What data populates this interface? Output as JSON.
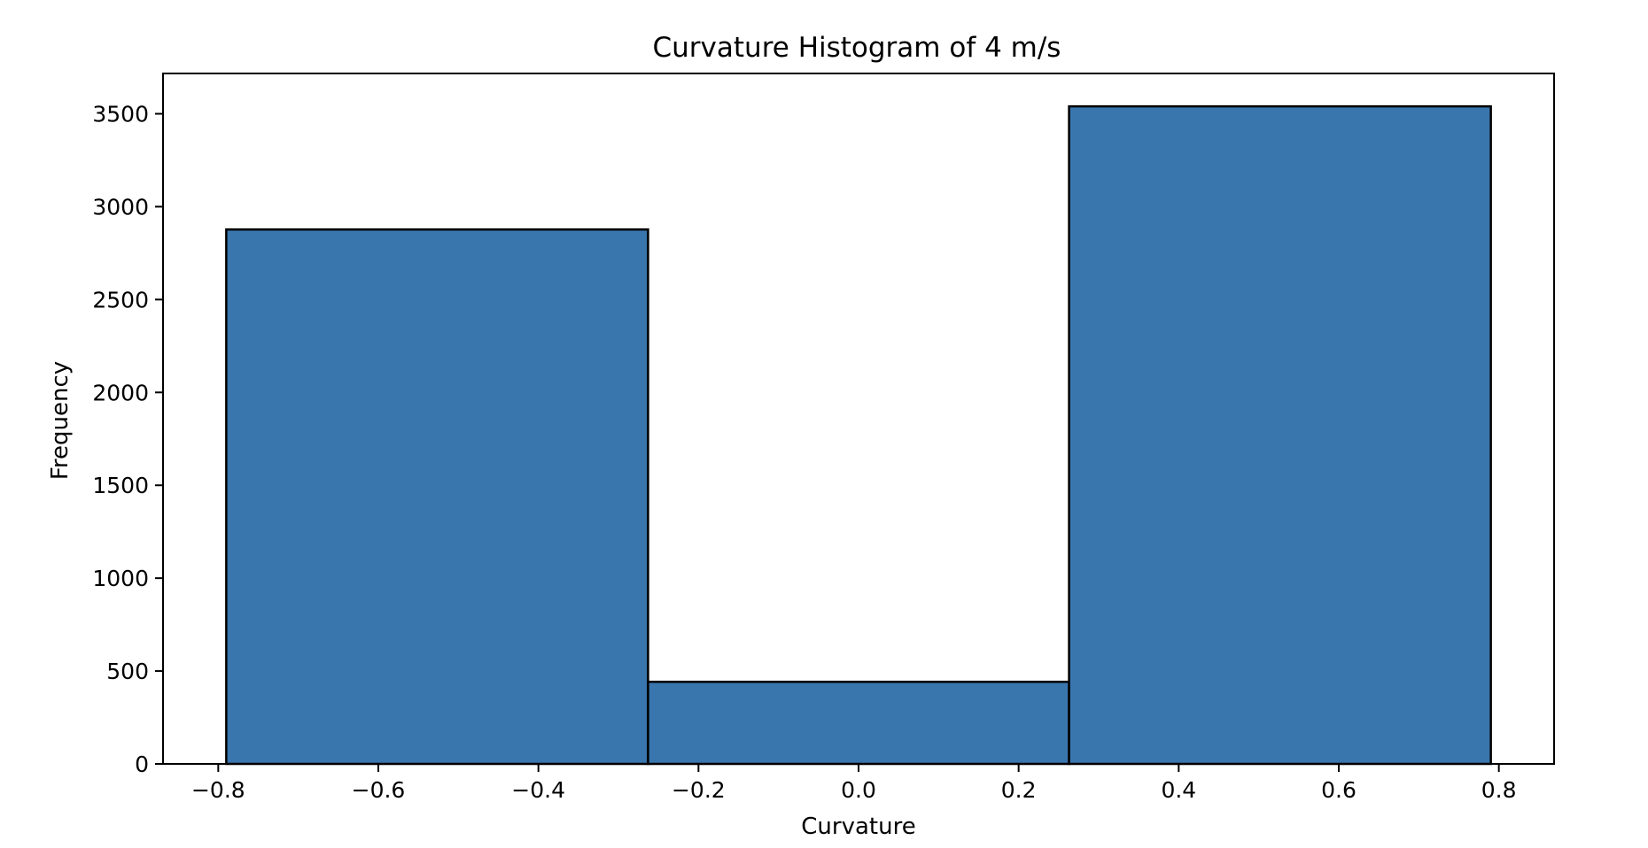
{
  "chart_data": {
    "type": "bar",
    "title": "Curvature Histogram of 4 m/s",
    "xlabel": "Curvature",
    "ylabel": "Frequency",
    "bins": [
      {
        "x0": -0.79,
        "x1": -0.263,
        "value": 2877
      },
      {
        "x0": -0.263,
        "x1": 0.263,
        "value": 442
      },
      {
        "x0": 0.263,
        "x1": 0.79,
        "value": 3540
      }
    ],
    "xlim": [
      -0.869,
      0.869
    ],
    "ylim": [
      0,
      3717
    ],
    "x_ticks": [
      -0.8,
      -0.6,
      -0.4,
      -0.2,
      0.0,
      0.2,
      0.4,
      0.6,
      0.8
    ],
    "x_tick_labels": [
      "−0.8",
      "−0.6",
      "−0.4",
      "−0.2",
      "0.0",
      "0.2",
      "0.4",
      "0.6",
      "0.8"
    ],
    "y_ticks": [
      0,
      500,
      1000,
      1500,
      2000,
      2500,
      3000,
      3500
    ],
    "y_tick_labels": [
      "0",
      "500",
      "1000",
      "1500",
      "2000",
      "2500",
      "3000",
      "3500"
    ],
    "grid": false,
    "legend": "none",
    "colors": {
      "bar_fill": "#3a76ae",
      "bar_edge": "#000000",
      "axis": "#000000"
    }
  }
}
